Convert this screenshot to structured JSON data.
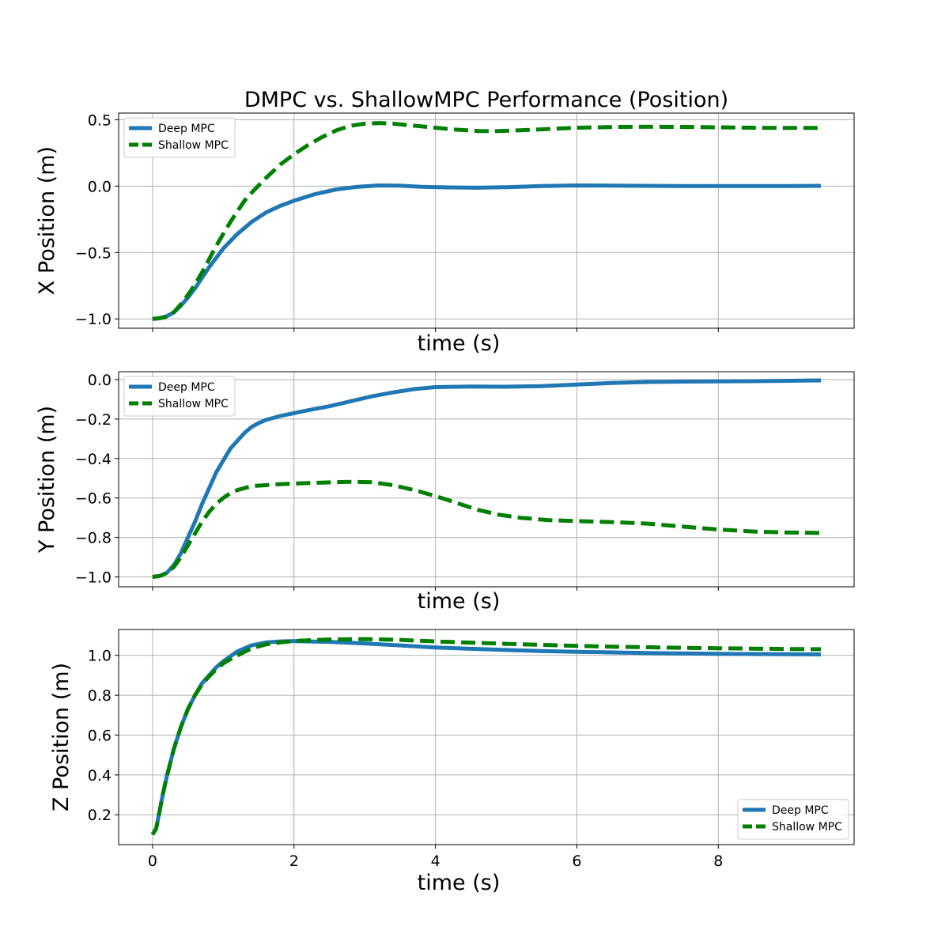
{
  "figure": {
    "title": "DMPC vs. ShallowMPC Performance (Position)",
    "colors": {
      "deep": "#1f77b4",
      "shallow": "#008000",
      "grid": "#b0b0b0"
    }
  },
  "chart_data": [
    {
      "type": "line",
      "title": "DMPC vs. ShallowMPC Performance (Position)",
      "xlabel": "time (s)",
      "ylabel": "X Position (m)",
      "xlim": [
        -0.48,
        9.92
      ],
      "ylim": [
        -1.07,
        0.55
      ],
      "x_ticks": [
        0,
        2,
        4,
        6,
        8
      ],
      "x_tick_labels_visible": false,
      "y_ticks": [
        -1.0,
        -0.5,
        0.0,
        0.5
      ],
      "y_tick_labels": [
        "−1.0",
        "−0.5",
        "0.0",
        "0.5"
      ],
      "grid": true,
      "legend_position": "top-left",
      "series": [
        {
          "name": "Deep MPC",
          "style": "solid",
          "color": "#1f77b4",
          "x": [
            0,
            0.1,
            0.2,
            0.3,
            0.4,
            0.5,
            0.6,
            0.7,
            0.8,
            0.9,
            1.0,
            1.2,
            1.4,
            1.6,
            1.8,
            2.0,
            2.3,
            2.6,
            2.9,
            3.2,
            3.5,
            3.8,
            4.2,
            4.6,
            5.0,
            5.5,
            6.0,
            6.5,
            7.0,
            7.5,
            8.0,
            8.5,
            9.0,
            9.45
          ],
          "y": [
            -1.0,
            -0.995,
            -0.98,
            -0.95,
            -0.9,
            -0.84,
            -0.77,
            -0.69,
            -0.61,
            -0.54,
            -0.47,
            -0.36,
            -0.27,
            -0.2,
            -0.15,
            -0.11,
            -0.06,
            -0.025,
            -0.005,
            0.005,
            0.003,
            -0.005,
            -0.01,
            -0.012,
            -0.008,
            0.0,
            0.005,
            0.004,
            0.002,
            0.0,
            0.0,
            0.0,
            0.001,
            0.002
          ]
        },
        {
          "name": "Shallow MPC",
          "style": "dashed",
          "color": "#008000",
          "x": [
            0,
            0.1,
            0.2,
            0.3,
            0.4,
            0.5,
            0.6,
            0.7,
            0.8,
            0.9,
            1.0,
            1.1,
            1.2,
            1.3,
            1.4,
            1.6,
            1.8,
            2.0,
            2.2,
            2.4,
            2.6,
            2.8,
            3.0,
            3.2,
            3.4,
            3.6,
            3.8,
            4.0,
            4.3,
            4.6,
            4.9,
            5.2,
            5.6,
            6.0,
            6.5,
            7.0,
            7.5,
            8.0,
            8.5,
            9.0,
            9.45
          ],
          "y": [
            -1.0,
            -0.995,
            -0.985,
            -0.95,
            -0.89,
            -0.82,
            -0.74,
            -0.65,
            -0.55,
            -0.45,
            -0.36,
            -0.27,
            -0.19,
            -0.11,
            -0.05,
            0.06,
            0.16,
            0.24,
            0.31,
            0.37,
            0.42,
            0.455,
            0.47,
            0.475,
            0.47,
            0.46,
            0.45,
            0.44,
            0.425,
            0.415,
            0.415,
            0.42,
            0.43,
            0.44,
            0.445,
            0.447,
            0.446,
            0.443,
            0.44,
            0.438,
            0.438
          ]
        }
      ]
    },
    {
      "type": "line",
      "xlabel": "time (s)",
      "ylabel": "Y Position (m)",
      "xlim": [
        -0.48,
        9.92
      ],
      "ylim": [
        -1.05,
        0.04
      ],
      "x_ticks": [
        0,
        2,
        4,
        6,
        8
      ],
      "x_tick_labels_visible": false,
      "y_ticks": [
        -1.0,
        -0.8,
        -0.6,
        -0.4,
        -0.2,
        0.0
      ],
      "y_tick_labels": [
        "−1.0",
        "−0.8",
        "−0.6",
        "−0.4",
        "−0.2",
        "0.0"
      ],
      "grid": true,
      "legend_position": "top-left",
      "series": [
        {
          "name": "Deep MPC",
          "style": "solid",
          "color": "#1f77b4",
          "x": [
            0,
            0.1,
            0.2,
            0.3,
            0.4,
            0.5,
            0.6,
            0.7,
            0.8,
            0.9,
            1.0,
            1.1,
            1.2,
            1.3,
            1.4,
            1.5,
            1.6,
            1.7,
            1.8,
            2.0,
            2.2,
            2.5,
            2.8,
            3.1,
            3.4,
            3.7,
            4.0,
            4.5,
            5.0,
            5.5,
            6.0,
            6.5,
            7.0,
            7.5,
            8.0,
            8.5,
            9.0,
            9.45
          ],
          "y": [
            -1.0,
            -0.995,
            -0.98,
            -0.94,
            -0.88,
            -0.8,
            -0.72,
            -0.63,
            -0.55,
            -0.47,
            -0.41,
            -0.35,
            -0.31,
            -0.27,
            -0.24,
            -0.22,
            -0.205,
            -0.195,
            -0.185,
            -0.17,
            -0.155,
            -0.135,
            -0.11,
            -0.085,
            -0.065,
            -0.048,
            -0.038,
            -0.035,
            -0.036,
            -0.033,
            -0.025,
            -0.017,
            -0.012,
            -0.01,
            -0.009,
            -0.008,
            -0.006,
            -0.004
          ]
        },
        {
          "name": "Shallow MPC",
          "style": "dashed",
          "color": "#008000",
          "x": [
            0,
            0.1,
            0.2,
            0.3,
            0.4,
            0.5,
            0.6,
            0.7,
            0.8,
            0.9,
            1.0,
            1.1,
            1.2,
            1.3,
            1.4,
            1.6,
            1.8,
            2.0,
            2.4,
            2.8,
            3.1,
            3.4,
            3.7,
            4.0,
            4.3,
            4.6,
            4.9,
            5.2,
            5.6,
            6.0,
            6.5,
            7.0,
            7.5,
            8.0,
            8.5,
            9.0,
            9.45
          ],
          "y": [
            -1.0,
            -0.995,
            -0.98,
            -0.95,
            -0.9,
            -0.84,
            -0.78,
            -0.72,
            -0.67,
            -0.63,
            -0.6,
            -0.575,
            -0.56,
            -0.55,
            -0.54,
            -0.535,
            -0.53,
            -0.527,
            -0.522,
            -0.518,
            -0.52,
            -0.535,
            -0.56,
            -0.59,
            -0.625,
            -0.66,
            -0.685,
            -0.7,
            -0.712,
            -0.717,
            -0.722,
            -0.73,
            -0.745,
            -0.76,
            -0.77,
            -0.775,
            -0.777
          ]
        }
      ]
    },
    {
      "type": "line",
      "xlabel": "time (s)",
      "ylabel": "Z Position (m)",
      "xlim": [
        -0.48,
        9.92
      ],
      "ylim": [
        0.05,
        1.13
      ],
      "x_ticks": [
        0,
        2,
        4,
        6,
        8
      ],
      "x_tick_labels": [
        "0",
        "2",
        "4",
        "6",
        "8"
      ],
      "y_ticks": [
        0.2,
        0.4,
        0.6,
        0.8,
        1.0
      ],
      "y_tick_labels": [
        "0.2",
        "0.4",
        "0.6",
        "0.8",
        "1.0"
      ],
      "grid": true,
      "legend_position": "bottom-right",
      "series": [
        {
          "name": "Deep MPC",
          "style": "solid",
          "color": "#1f77b4",
          "x": [
            0,
            0.05,
            0.1,
            0.15,
            0.2,
            0.25,
            0.3,
            0.4,
            0.5,
            0.6,
            0.7,
            0.8,
            0.9,
            1.0,
            1.2,
            1.4,
            1.6,
            1.8,
            2.0,
            2.2,
            2.5,
            3.0,
            3.5,
            4.0,
            4.5,
            5.0,
            5.5,
            6.0,
            6.5,
            7.0,
            7.5,
            8.0,
            8.5,
            9.0,
            9.45
          ],
          "y": [
            0.1,
            0.13,
            0.22,
            0.31,
            0.39,
            0.46,
            0.53,
            0.64,
            0.73,
            0.8,
            0.86,
            0.9,
            0.94,
            0.97,
            1.02,
            1.05,
            1.065,
            1.07,
            1.072,
            1.07,
            1.068,
            1.06,
            1.05,
            1.04,
            1.033,
            1.027,
            1.022,
            1.018,
            1.015,
            1.012,
            1.01,
            1.008,
            1.007,
            1.006,
            1.005
          ]
        },
        {
          "name": "Shallow MPC",
          "style": "dashed",
          "color": "#008000",
          "x": [
            0,
            0.05,
            0.1,
            0.15,
            0.2,
            0.25,
            0.3,
            0.4,
            0.5,
            0.6,
            0.7,
            0.8,
            0.9,
            1.0,
            1.2,
            1.4,
            1.6,
            1.8,
            2.0,
            2.2,
            2.5,
            3.0,
            3.5,
            4.0,
            4.5,
            5.0,
            5.5,
            6.0,
            6.5,
            7.0,
            7.5,
            8.0,
            8.5,
            9.0,
            9.45
          ],
          "y": [
            0.1,
            0.13,
            0.22,
            0.31,
            0.39,
            0.46,
            0.53,
            0.64,
            0.73,
            0.8,
            0.855,
            0.895,
            0.93,
            0.96,
            1.0,
            1.035,
            1.055,
            1.065,
            1.072,
            1.076,
            1.08,
            1.082,
            1.078,
            1.07,
            1.064,
            1.058,
            1.053,
            1.048,
            1.044,
            1.041,
            1.038,
            1.036,
            1.034,
            1.032,
            1.031
          ]
        }
      ]
    }
  ]
}
